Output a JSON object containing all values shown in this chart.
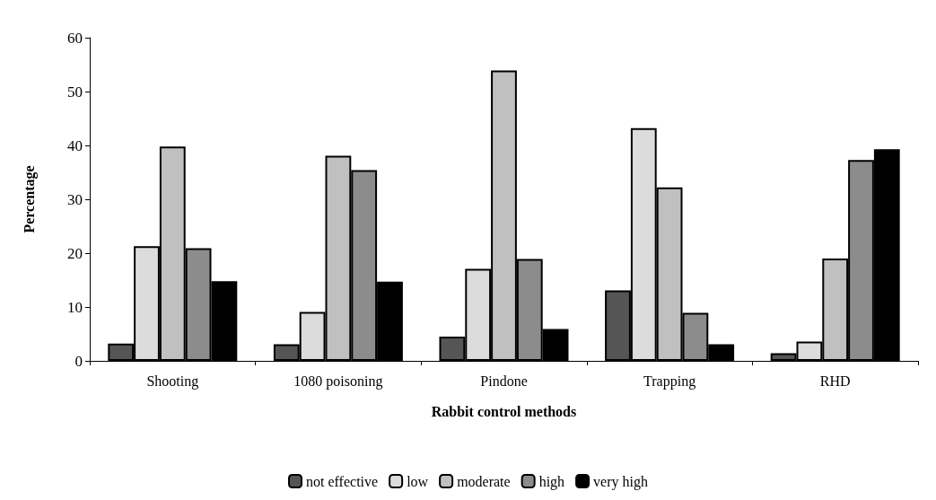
{
  "chart_data": {
    "type": "bar",
    "xlabel": "Rabbit control methods",
    "ylabel": "Percentage",
    "categories": [
      "Shooting",
      "1080 poisoning",
      "Pindone",
      "Trapping",
      "RHD"
    ],
    "series": [
      {
        "name": "not effective",
        "color": "#555555",
        "values": [
          3.2,
          3.1,
          4.5,
          13.1,
          1.4
        ]
      },
      {
        "name": "low",
        "color": "#dcdcdc",
        "values": [
          21.3,
          9.1,
          17.1,
          43.2,
          3.6
        ]
      },
      {
        "name": "moderate",
        "color": "#c0c0c0",
        "values": [
          39.8,
          38.1,
          53.9,
          32.2,
          19.0
        ]
      },
      {
        "name": "high",
        "color": "#8c8c8c",
        "values": [
          20.9,
          35.4,
          18.9,
          8.9,
          37.3
        ]
      },
      {
        "name": "very high",
        "color": "#000000",
        "values": [
          14.8,
          14.7,
          5.9,
          3.1,
          39.3
        ]
      }
    ],
    "ylim": [
      0,
      60
    ],
    "yticks": [
      0,
      10,
      20,
      30,
      40,
      50,
      60
    ],
    "grid": false,
    "legend": "bottom"
  }
}
